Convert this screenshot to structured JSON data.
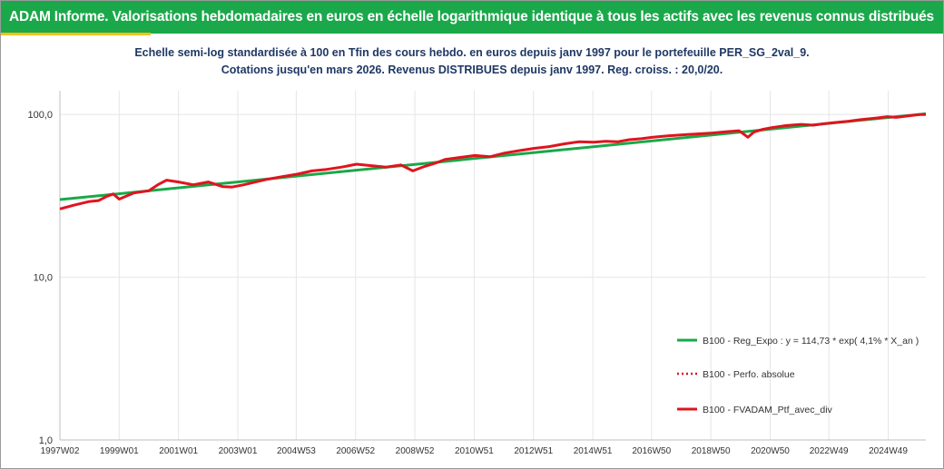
{
  "header": {
    "title": "ADAM Informe. Valorisations hebdomadaires en euros en échelle logarithmique identique à tous les actifs avec les revenus connus distribués"
  },
  "colors": {
    "header_bg": "#1aa84a",
    "accent": "#f2c21b",
    "subtitle": "#1f3864",
    "regression": "#1aa84a",
    "portfolio": "#e0141e"
  },
  "chart_data": {
    "type": "line",
    "subtitle": [
      "Echelle semi-log standardisée  à 100 en Tfin des cours hebdo.  en euros depuis janv 1997 pour le portefeuille PER_SG_2val_9.",
      "Cotations  jusqu'en mars 2026. Revenus DISTRIBUES depuis janv 1997. Reg. croiss. : 20,0/20."
    ],
    "y_scale": "log",
    "ylim": [
      1,
      140
    ],
    "y_ticks": [
      1,
      10,
      100
    ],
    "y_tick_labels": [
      "1,0",
      "10,0",
      "100,0"
    ],
    "x_range": [
      1997.0,
      2026.2
    ],
    "x_ticks": [
      1997.0,
      1999.0,
      2001.0,
      2003.0,
      2004.97,
      2006.97,
      2008.97,
      2010.97,
      2012.97,
      2014.97,
      2016.95,
      2018.95,
      2020.95,
      2022.93,
      2024.93
    ],
    "x_tick_labels": [
      "1997W02",
      "1999W01",
      "2001W01",
      "2003W01",
      "2004W53",
      "2006W52",
      "2008W52",
      "2010W51",
      "2012W51",
      "2014W51",
      "2016W50",
      "2018W50",
      "2020W50",
      "2022W49",
      "2024W49"
    ],
    "grid": true,
    "legend_position": "bottom-right",
    "series": [
      {
        "name": "B100 - Reg_Expo : y = 114,73 * exp( 4,1% * X_an )",
        "style": "solid-green",
        "x": [
          1997.0,
          2026.2
        ],
        "y": [
          30.0,
          101.0
        ]
      },
      {
        "name": "B100 - Perfo. absolue",
        "style": "dotted-red",
        "x": [],
        "y": []
      },
      {
        "name": "B100 - FVADAM_Ptf_avec_div",
        "style": "solid-red",
        "x": [
          1997.0,
          1997.5,
          1998.0,
          1998.3,
          1998.6,
          1998.8,
          1999.0,
          1999.5,
          2000.0,
          2000.3,
          2000.6,
          2001.0,
          2001.5,
          2002.0,
          2002.5,
          2002.8,
          2003.2,
          2003.6,
          2004.0,
          2004.5,
          2005.0,
          2005.5,
          2006.0,
          2006.5,
          2007.0,
          2007.5,
          2008.0,
          2008.5,
          2008.9,
          2009.3,
          2009.7,
          2010.0,
          2010.5,
          2011.0,
          2011.5,
          2012.0,
          2012.5,
          2013.0,
          2013.5,
          2014.0,
          2014.5,
          2015.0,
          2015.4,
          2015.8,
          2016.2,
          2016.6,
          2017.0,
          2017.5,
          2018.0,
          2018.5,
          2019.0,
          2019.5,
          2019.9,
          2020.2,
          2020.4,
          2020.7,
          2021.0,
          2021.5,
          2022.0,
          2022.4,
          2022.8,
          2023.2,
          2023.6,
          2024.0,
          2024.5,
          2024.9,
          2025.2,
          2025.6,
          2026.0,
          2026.2
        ],
        "y": [
          26.3,
          27.8,
          29.2,
          29.6,
          31.5,
          32.5,
          30.2,
          33.0,
          34.0,
          37.0,
          39.5,
          38.5,
          37.0,
          38.5,
          36.0,
          35.8,
          37.0,
          38.5,
          40.0,
          41.5,
          43.0,
          45.0,
          46.0,
          47.5,
          49.5,
          48.5,
          47.5,
          49.0,
          45.0,
          48.0,
          50.5,
          53.0,
          54.5,
          56.0,
          55.0,
          58.0,
          60.0,
          62.0,
          63.5,
          66.0,
          68.0,
          67.5,
          68.5,
          68.0,
          70.0,
          71.0,
          72.5,
          74.0,
          75.0,
          76.0,
          77.0,
          78.5,
          79.5,
          72.5,
          78.0,
          81.0,
          83.0,
          85.5,
          87.0,
          86.0,
          88.0,
          89.5,
          91.0,
          93.0,
          95.0,
          97.0,
          96.0,
          98.0,
          100.0,
          100.0
        ]
      }
    ]
  }
}
